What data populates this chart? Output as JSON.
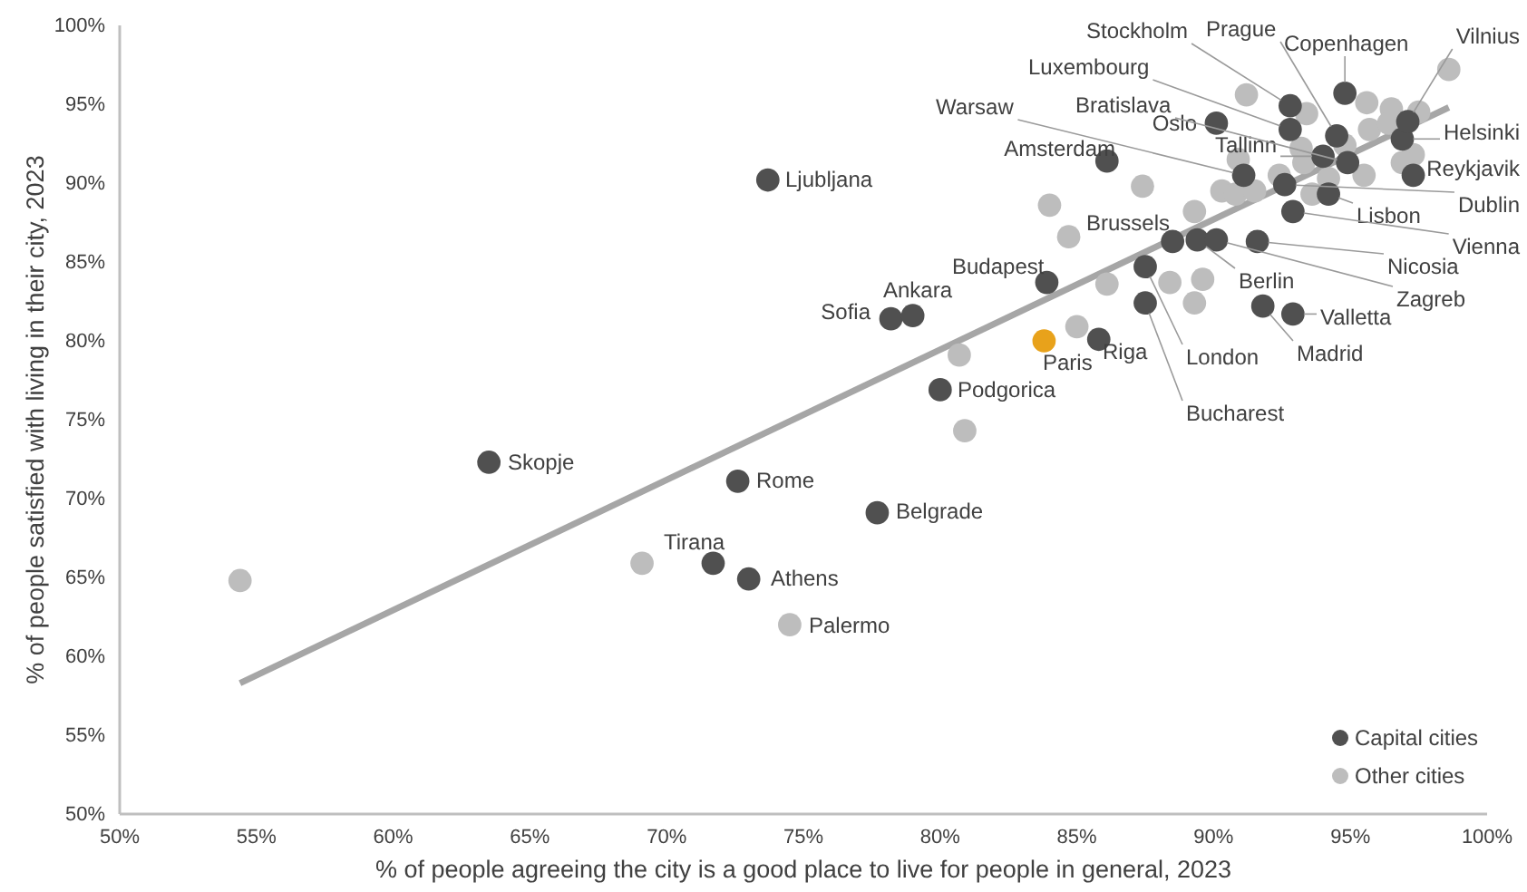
{
  "chart_data": {
    "type": "scatter",
    "xlabel": "% of people agreeing the city is a good place to live for people in general, 2023",
    "ylabel": "% of people satisfied with living in their city, 2023",
    "xlim": [
      50,
      100
    ],
    "ylim": [
      50,
      100
    ],
    "xticks": [
      {
        "value": 50,
        "label": "50%"
      },
      {
        "value": 55,
        "label": "55%"
      },
      {
        "value": 60,
        "label": "60%"
      },
      {
        "value": 65,
        "label": "65%"
      },
      {
        "value": 70,
        "label": "70%"
      },
      {
        "value": 75,
        "label": "75%"
      },
      {
        "value": 80,
        "label": "80%"
      },
      {
        "value": 85,
        "label": "85%"
      },
      {
        "value": 90,
        "label": "90%"
      },
      {
        "value": 95,
        "label": "95%"
      },
      {
        "value": 100,
        "label": "100%"
      }
    ],
    "yticks": [
      {
        "value": 50,
        "label": "50%"
      },
      {
        "value": 55,
        "label": "55%"
      },
      {
        "value": 60,
        "label": "60%"
      },
      {
        "value": 65,
        "label": "65%"
      },
      {
        "value": 70,
        "label": "70%"
      },
      {
        "value": 75,
        "label": "75%"
      },
      {
        "value": 80,
        "label": "80%"
      },
      {
        "value": 85,
        "label": "85%"
      },
      {
        "value": 90,
        "label": "90%"
      },
      {
        "value": 95,
        "label": "95%"
      },
      {
        "value": 100,
        "label": "100%"
      }
    ],
    "grid": false,
    "legend": "bottom right",
    "marker": "circle",
    "series": [
      {
        "type": "line",
        "marker": "none",
        "color": "#a6a6a6",
        "x": [
          54.4,
          98.6
        ],
        "values": [
          58.3,
          94.8
        ]
      },
      {
        "name": "Other cities",
        "color": "#bdbdbd",
        "x": [
          54.4,
          69.1,
          74.5,
          80.9,
          80.7,
          85.0,
          86.1,
          84.0,
          84.7,
          88.4,
          89.6,
          89.3,
          89.3,
          87.4,
          91.2,
          93.4,
          90.9,
          90.3,
          90.8,
          91.5,
          92.4,
          93.6,
          94.2,
          95.5,
          95.7,
          95.6,
          96.5,
          96.4,
          97.5,
          97.3,
          98.6,
          93.2,
          93.3,
          94.8,
          96.9
        ],
        "values": [
          64.8,
          65.9,
          62.0,
          74.3,
          79.1,
          80.9,
          83.6,
          88.6,
          86.6,
          83.7,
          83.9,
          82.4,
          88.2,
          89.8,
          95.6,
          94.4,
          91.5,
          89.5,
          89.3,
          89.5,
          90.5,
          89.3,
          90.3,
          90.5,
          93.4,
          95.1,
          94.7,
          93.8,
          94.5,
          91.8,
          97.2,
          92.2,
          91.3,
          92.4,
          91.3
        ]
      },
      {
        "name": "Capital cities",
        "color": "#505050",
        "x": [
          73.7,
          63.5,
          72.6,
          77.7,
          71.7,
          73.0,
          78.2,
          79.0,
          80.0,
          83.9,
          85.8,
          88.5,
          89.4,
          90.1,
          91.6,
          92.9,
          87.5,
          87.5,
          91.8,
          92.9,
          94.2,
          92.6,
          97.3,
          96.9,
          97.1,
          94.8,
          94.5,
          92.8,
          92.8,
          94.9,
          90.1,
          94.0,
          91.1,
          86.1
        ],
        "values": [
          90.2,
          72.3,
          71.1,
          69.1,
          65.9,
          64.9,
          81.4,
          81.6,
          76.9,
          83.7,
          80.1,
          86.3,
          86.4,
          86.4,
          86.3,
          88.2,
          84.7,
          82.4,
          82.2,
          81.7,
          89.3,
          89.9,
          90.5,
          92.8,
          93.9,
          95.7,
          93.0,
          94.9,
          93.4,
          91.3,
          93.8,
          91.7,
          90.5,
          91.4
        ]
      },
      {
        "color": "#e8a21b",
        "x": [
          83.8
        ],
        "values": [
          80.0
        ]
      }
    ],
    "annotations": [
      {
        "text": "Ljubljana",
        "x": 73.7,
        "y": 90.2
      },
      {
        "text": "Skopje",
        "x": 63.5,
        "y": 72.3
      },
      {
        "text": "Rome",
        "x": 72.6,
        "y": 71.1
      },
      {
        "text": "Belgrade",
        "x": 77.7,
        "y": 69.1
      },
      {
        "text": "Tirana",
        "x": 71.7,
        "y": 65.9
      },
      {
        "text": "Athens",
        "x": 73.0,
        "y": 64.9
      },
      {
        "text": "Palermo",
        "x": 74.5,
        "y": 62.0
      },
      {
        "text": "Sofia",
        "x": 78.2,
        "y": 81.4
      },
      {
        "text": "Ankara",
        "x": 79.0,
        "y": 81.6
      },
      {
        "text": "Podgorica",
        "x": 80.0,
        "y": 76.9
      },
      {
        "text": "Budapest",
        "x": 83.9,
        "y": 83.7
      },
      {
        "text": "Paris",
        "x": 83.8,
        "y": 80.0
      },
      {
        "text": "Riga",
        "x": 85.8,
        "y": 80.1
      },
      {
        "text": "Brussels",
        "x": 88.5,
        "y": 86.3
      },
      {
        "text": "Berlin",
        "x": 89.4,
        "y": 86.4
      },
      {
        "text": "Zagreb",
        "x": 90.1,
        "y": 86.4
      },
      {
        "text": "Nicosia",
        "x": 91.6,
        "y": 86.3
      },
      {
        "text": "Vienna",
        "x": 92.9,
        "y": 88.2
      },
      {
        "text": "London",
        "x": 87.5,
        "y": 84.7
      },
      {
        "text": "Bucharest",
        "x": 87.5,
        "y": 82.4
      },
      {
        "text": "Madrid",
        "x": 91.8,
        "y": 82.2
      },
      {
        "text": "Valletta",
        "x": 92.9,
        "y": 81.7
      },
      {
        "text": "Lisbon",
        "x": 94.2,
        "y": 89.3
      },
      {
        "text": "Dublin",
        "x": 92.6,
        "y": 89.9
      },
      {
        "text": "Reykjavik",
        "x": 97.3,
        "y": 90.5
      },
      {
        "text": "Helsinki",
        "x": 96.9,
        "y": 92.8
      },
      {
        "text": "Vilnius",
        "x": 97.1,
        "y": 93.9
      },
      {
        "text": "Copenhagen",
        "x": 94.8,
        "y": 95.7
      },
      {
        "text": "Prague",
        "x": 94.5,
        "y": 93.0
      },
      {
        "text": "Stockholm",
        "x": 92.8,
        "y": 94.9
      },
      {
        "text": "Luxembourg",
        "x": 92.8,
        "y": 93.4
      },
      {
        "text": "Bratislava",
        "x": 94.9,
        "y": 91.3
      },
      {
        "text": "Oslo",
        "x": 90.1,
        "y": 93.8
      },
      {
        "text": "Tallinn",
        "x": 94.0,
        "y": 91.7
      },
      {
        "text": "Warsaw",
        "x": 91.1,
        "y": 90.5
      },
      {
        "text": "Amsterdam",
        "x": 86.1,
        "y": 91.4
      }
    ]
  }
}
